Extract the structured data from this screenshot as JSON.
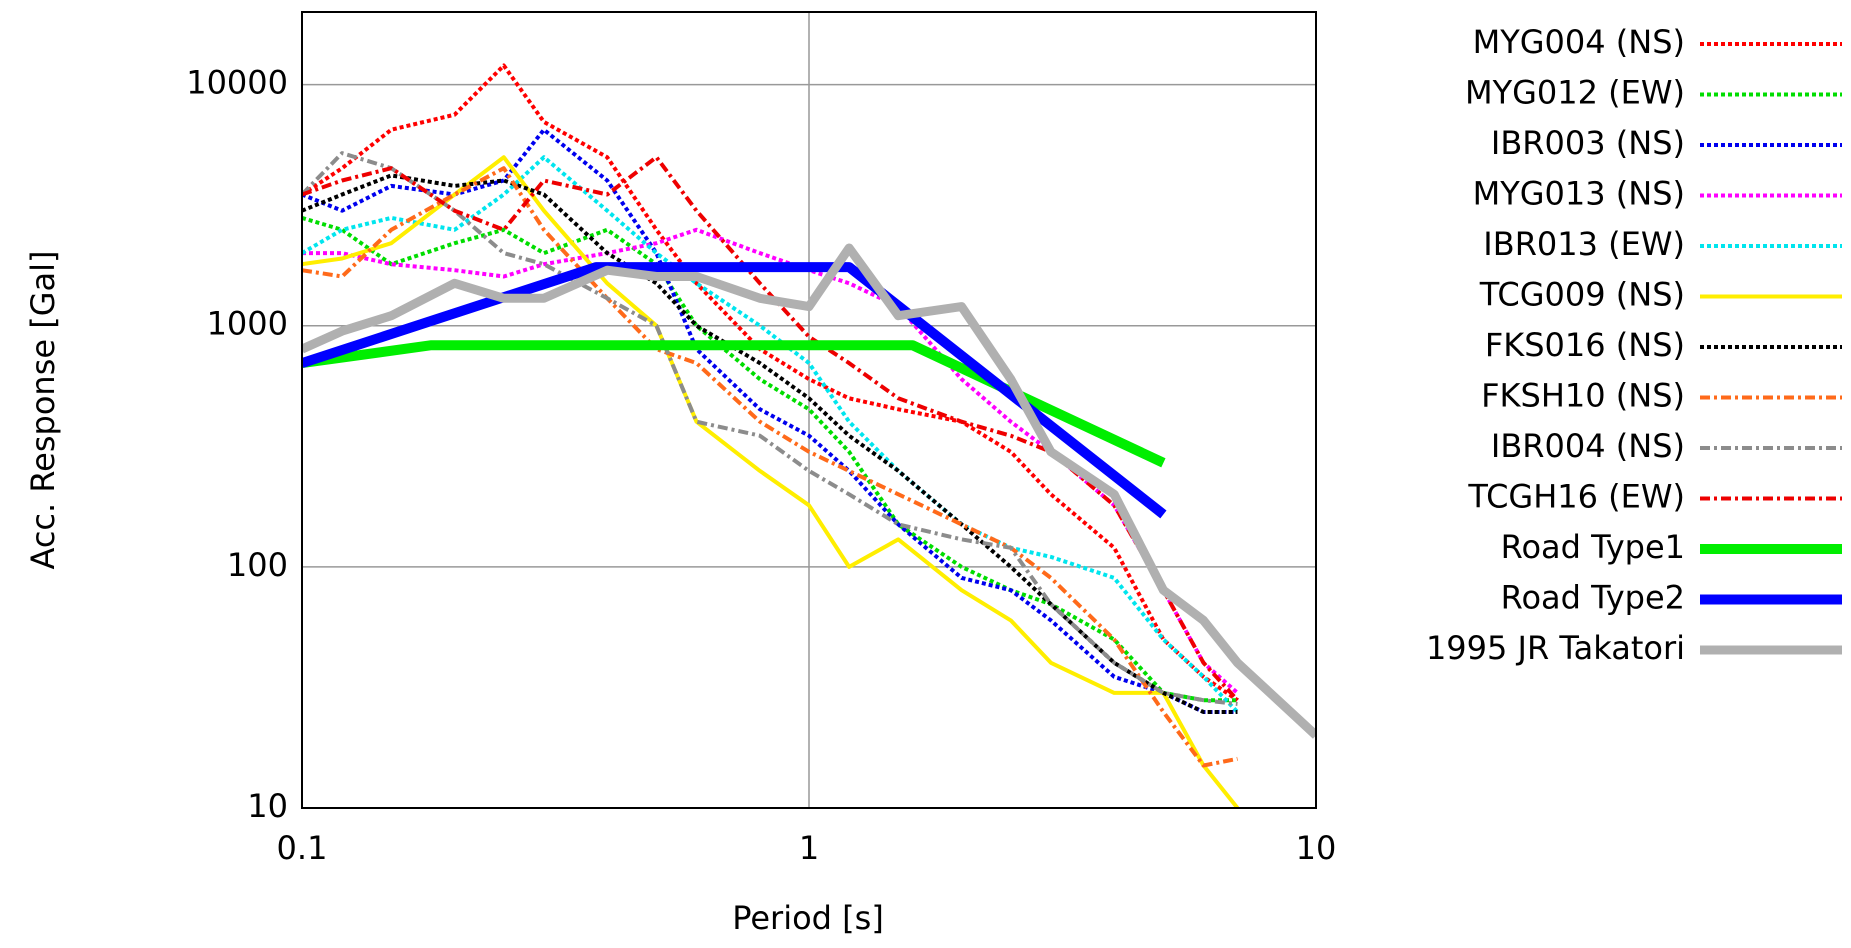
{
  "chart_data": {
    "type": "line",
    "xlabel": "Period [s]",
    "ylabel": "Acc. Response [Gal]",
    "xscale": "log",
    "yscale": "log",
    "xlim": [
      0.1,
      10
    ],
    "ylim": [
      10,
      20000
    ],
    "xticks": [
      0.1,
      1,
      10
    ],
    "yticks": [
      10,
      100,
      1000,
      10000
    ],
    "grid": true,
    "legend": "right",
    "series": [
      {
        "name": "MYG004 (NS)",
        "color": "#ff0000",
        "style": "dotted",
        "linewidth": 4,
        "x": [
          0.1,
          0.12,
          0.15,
          0.2,
          0.25,
          0.3,
          0.4,
          0.5,
          0.6,
          0.8,
          1,
          1.2,
          1.5,
          2,
          2.5,
          3,
          4,
          5,
          6,
          7
        ],
        "values": [
          3500,
          4500,
          6500,
          7500,
          12000,
          7000,
          5000,
          2500,
          1500,
          800,
          600,
          500,
          450,
          400,
          300,
          200,
          120,
          50,
          35,
          28
        ]
      },
      {
        "name": "MYG012 (EW)",
        "color": "#00dd00",
        "style": "dotted",
        "linewidth": 4,
        "x": [
          0.1,
          0.12,
          0.15,
          0.2,
          0.25,
          0.3,
          0.4,
          0.5,
          0.6,
          0.8,
          1,
          1.2,
          1.5,
          2,
          2.5,
          3,
          4,
          5,
          6,
          7
        ],
        "values": [
          2800,
          2500,
          1800,
          2200,
          2500,
          2000,
          2500,
          1800,
          1000,
          600,
          450,
          300,
          150,
          100,
          80,
          70,
          50,
          30,
          28,
          28
        ]
      },
      {
        "name": "IBR003 (NS)",
        "color": "#0000ee",
        "style": "dotted",
        "linewidth": 4,
        "x": [
          0.1,
          0.12,
          0.15,
          0.2,
          0.25,
          0.3,
          0.4,
          0.5,
          0.6,
          0.8,
          1,
          1.2,
          1.5,
          2,
          2.5,
          3,
          4,
          5,
          6,
          7
        ],
        "values": [
          3500,
          3000,
          3800,
          3500,
          4000,
          6500,
          4000,
          2000,
          800,
          450,
          350,
          250,
          150,
          90,
          80,
          60,
          35,
          30,
          25,
          25
        ]
      },
      {
        "name": "MYG013 (NS)",
        "color": "#ff00ff",
        "style": "dotted",
        "linewidth": 4,
        "x": [
          0.1,
          0.12,
          0.15,
          0.2,
          0.25,
          0.3,
          0.4,
          0.5,
          0.6,
          0.8,
          1,
          1.2,
          1.5,
          2,
          2.5,
          3,
          4,
          5,
          6,
          7
        ],
        "values": [
          2000,
          2000,
          1800,
          1700,
          1600,
          1800,
          2000,
          2200,
          2500,
          2000,
          1700,
          1500,
          1200,
          600,
          400,
          300,
          180,
          80,
          40,
          30
        ]
      },
      {
        "name": "IBR013 (EW)",
        "color": "#00e5ee",
        "style": "dotted",
        "linewidth": 4,
        "x": [
          0.1,
          0.12,
          0.15,
          0.2,
          0.25,
          0.3,
          0.4,
          0.5,
          0.6,
          0.8,
          1,
          1.2,
          1.5,
          2,
          2.5,
          3,
          4,
          5,
          6,
          7
        ],
        "values": [
          2000,
          2500,
          2800,
          2500,
          3500,
          5000,
          3000,
          2000,
          1500,
          1000,
          700,
          400,
          250,
          150,
          120,
          110,
          90,
          50,
          35,
          25
        ]
      },
      {
        "name": "TCG009 (NS)",
        "color": "#ffee00",
        "style": "solid",
        "linewidth": 4,
        "x": [
          0.1,
          0.12,
          0.15,
          0.2,
          0.25,
          0.3,
          0.4,
          0.5,
          0.6,
          0.8,
          1,
          1.2,
          1.5,
          2,
          2.5,
          3,
          4,
          5,
          6,
          7
        ],
        "values": [
          1800,
          1900,
          2200,
          3500,
          5000,
          3000,
          1500,
          1000,
          400,
          250,
          180,
          100,
          130,
          80,
          60,
          40,
          30,
          30,
          15,
          10
        ]
      },
      {
        "name": "FKS016 (NS)",
        "color": "#000000",
        "style": "dotted",
        "linewidth": 4,
        "x": [
          0.1,
          0.12,
          0.15,
          0.2,
          0.25,
          0.3,
          0.4,
          0.5,
          0.6,
          0.8,
          1,
          1.2,
          1.5,
          2,
          2.5,
          3,
          4,
          5,
          6,
          7
        ],
        "values": [
          3000,
          3500,
          4200,
          3800,
          4000,
          3500,
          2000,
          1500,
          1000,
          700,
          500,
          350,
          250,
          150,
          100,
          70,
          40,
          30,
          25,
          25
        ]
      },
      {
        "name": "FKSH10 (NS)",
        "color": "#ff6a1a",
        "style": "dashdot",
        "linewidth": 4,
        "x": [
          0.1,
          0.12,
          0.15,
          0.2,
          0.25,
          0.3,
          0.4,
          0.5,
          0.6,
          0.8,
          1,
          1.2,
          1.5,
          2,
          2.5,
          3,
          4,
          5,
          6,
          7
        ],
        "values": [
          1700,
          1600,
          2500,
          3500,
          4500,
          2500,
          1300,
          800,
          700,
          400,
          300,
          250,
          200,
          150,
          120,
          90,
          50,
          25,
          15,
          16
        ]
      },
      {
        "name": "IBR004 (NS)",
        "color": "#8c8c8c",
        "style": "dashdot",
        "linewidth": 4,
        "x": [
          0.1,
          0.12,
          0.15,
          0.2,
          0.25,
          0.3,
          0.4,
          0.5,
          0.6,
          0.8,
          1,
          1.2,
          1.5,
          2,
          2.5,
          3,
          4,
          5,
          6,
          7
        ],
        "values": [
          3500,
          5200,
          4500,
          3000,
          2000,
          1800,
          1300,
          1000,
          400,
          350,
          250,
          200,
          150,
          130,
          120,
          70,
          40,
          30,
          28,
          27
        ]
      },
      {
        "name": "TCGH16 (EW)",
        "color": "#ee0000",
        "style": "dashdot",
        "linewidth": 4,
        "x": [
          0.1,
          0.12,
          0.15,
          0.2,
          0.25,
          0.3,
          0.4,
          0.5,
          0.6,
          0.8,
          1,
          1.2,
          1.5,
          2,
          2.5,
          3,
          4,
          5,
          6,
          7
        ],
        "values": [
          3500,
          4000,
          4500,
          3000,
          2500,
          4000,
          3500,
          5000,
          3000,
          1500,
          900,
          700,
          500,
          400,
          350,
          300,
          180,
          80,
          40,
          28
        ]
      },
      {
        "name": "Road Type1",
        "color": "#00ee00",
        "style": "solid",
        "linewidth": 10,
        "x": [
          0.1,
          0.18,
          1.6,
          5
        ],
        "values": [
          700,
          830,
          830,
          270
        ]
      },
      {
        "name": "Road Type2",
        "color": "#0000ff",
        "style": "solid",
        "linewidth": 10,
        "x": [
          0.1,
          0.38,
          1.2,
          5
        ],
        "values": [
          700,
          1750,
          1750,
          165
        ]
      },
      {
        "name": "1995 JR Takatori",
        "color": "#b0b0b0",
        "style": "solid",
        "linewidth": 9,
        "x": [
          0.1,
          0.12,
          0.15,
          0.2,
          0.25,
          0.3,
          0.4,
          0.5,
          0.6,
          0.8,
          1,
          1.2,
          1.5,
          2,
          2.5,
          3,
          4,
          5,
          6,
          7,
          10
        ],
        "values": [
          800,
          950,
          1100,
          1500,
          1300,
          1300,
          1700,
          1600,
          1600,
          1300,
          1200,
          2100,
          1100,
          1200,
          600,
          300,
          200,
          80,
          60,
          40,
          20
        ]
      }
    ]
  }
}
